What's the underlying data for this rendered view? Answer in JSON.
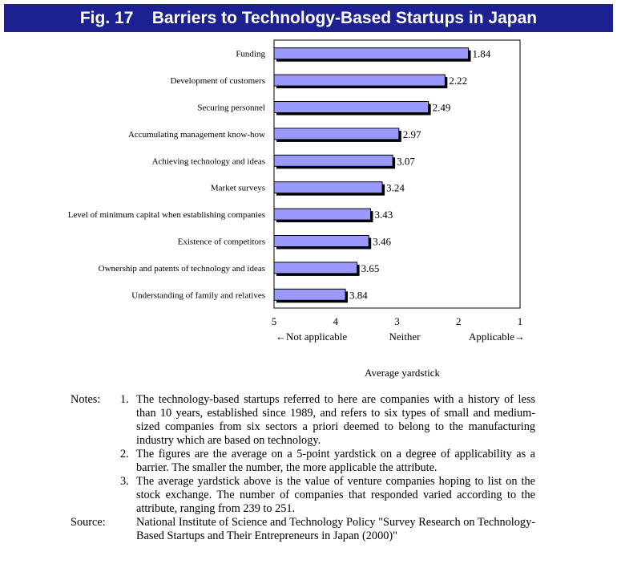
{
  "title": {
    "fig": "Fig. 17",
    "text": "Barriers to Technology-Based Startups in Japan"
  },
  "chart_data": {
    "type": "bar",
    "orientation": "horizontal",
    "categories": [
      "Funding",
      "Development of customers",
      "Securing personnel",
      "Accumulating management know-how",
      "Achieving technology and ideas",
      "Market surveys",
      "Level of minimum capital when establishing companies",
      "Existence of competitors",
      "Ownership and patents of technology and ideas",
      "Understanding of family and relatives"
    ],
    "values": [
      1.84,
      2.22,
      2.49,
      2.97,
      3.07,
      3.24,
      3.43,
      3.46,
      3.65,
      3.84
    ],
    "value_labels": [
      "1.84",
      "2.22",
      "2.49",
      "2.97",
      "3.07",
      "3.24",
      "3.43",
      "3.46",
      "3.65",
      "3.84"
    ],
    "xlim": [
      5,
      1
    ],
    "x_reversed": true,
    "xticks": [
      "5",
      "4",
      "3",
      "2",
      "1"
    ],
    "axis_annotations": {
      "left": "←Not applicable",
      "middle": "Neither",
      "right": "Applicable→"
    },
    "xlabel": "Average yardstick",
    "grid": false,
    "legend": "none",
    "bar_color": "#9999ff",
    "shadow_color": "#000000"
  },
  "notes": {
    "head": "Notes:",
    "items": [
      {
        "num": "1.",
        "text": "The technology-based startups referred to here are companies with a history of less than 10 years, established since 1989, and refers to six types of small and medium-sized companies from six sectors a priori deemed to belong to the manufacturing industry which are based on technology."
      },
      {
        "num": "2.",
        "text": "The figures are the average on a 5-point yardstick on a degree of applicability as a barrier. The smaller the number, the more applicable the attribute."
      },
      {
        "num": "3.",
        "text": "The average yardstick above is the value of venture companies hoping to list on the stock exchange. The number of companies that responded varied according to the attribute, ranging from 239 to 251."
      }
    ]
  },
  "source": {
    "head": "Source:",
    "text": "National Institute of Science and Technology Policy \"Survey Research on Technology-Based Startups and Their Entrepreneurs in Japan (2000)\""
  }
}
